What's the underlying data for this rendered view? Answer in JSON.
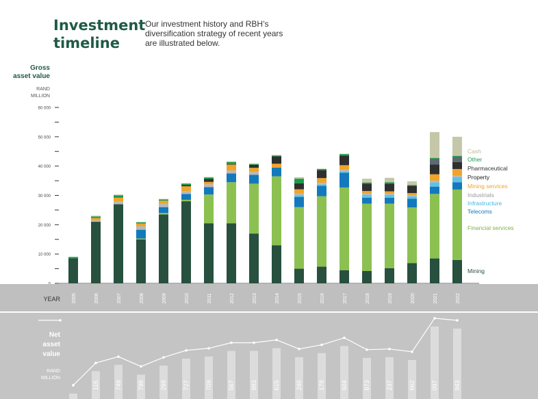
{
  "header": {
    "title_lines": [
      "Investment",
      "timeline"
    ],
    "intro_lines": [
      "Our investment history and RBH’s",
      "diversification strategy of recent years",
      "are illustrated below."
    ]
  },
  "gross_axis": {
    "title_lines": [
      "Gross",
      "asset value"
    ],
    "unit_lines": [
      "RAND",
      "MILLION"
    ]
  },
  "year_label": "YEAR",
  "net_axis": {
    "title_lines": [
      "Net",
      "asset",
      "value"
    ],
    "unit_lines": [
      "RAND",
      "MILLION"
    ]
  },
  "colors": {
    "mining": "#27503f",
    "financial_services": "#8cc152",
    "telecoms": "#1479bc",
    "infrastructure": "#5ec2e6",
    "industrials": "#b8b8b8",
    "mining_services": "#f0a42a",
    "property": "#2f2f2f",
    "pharmaceutical": "#5d6a70",
    "other": "#1b9b4a",
    "cash": "#c5c8a8",
    "band": "#bfbfbf",
    "net_band": "#c4c4c4"
  },
  "chart_data": [
    {
      "type": "bar",
      "stacked": true,
      "ylim": [
        0,
        60000
      ],
      "yticks": [
        "60 000",
        "50 000",
        "40 000",
        "30 000",
        "20 000",
        "10 000",
        "0"
      ],
      "ytick_values": [
        60000,
        50000,
        40000,
        30000,
        20000,
        10000,
        0
      ],
      "categories": [
        "2005",
        "2006",
        "2007",
        "2008",
        "2009",
        "2010",
        "2011",
        "2012",
        "2013",
        "2014",
        "2015",
        "2016",
        "2017",
        "2018",
        "2019",
        "2020",
        "2021",
        "2022"
      ],
      "legend_position": "right",
      "series": [
        {
          "name": "Mining",
          "key": "mining",
          "values": [
            8500,
            21000,
            27000,
            15000,
            23500,
            28000,
            20500,
            20500,
            17000,
            13000,
            5000,
            5700,
            4500,
            4200,
            5200,
            6900,
            8500,
            8000
          ]
        },
        {
          "name": "Financial services",
          "key": "financial_services",
          "values": [
            0,
            0,
            0,
            300,
            500,
            500,
            9800,
            14000,
            17000,
            23500,
            21000,
            24000,
            28200,
            23000,
            22000,
            19000,
            22000,
            24000
          ]
        },
        {
          "name": "Telecoms",
          "key": "telecoms",
          "values": [
            0,
            0,
            0,
            3000,
            2000,
            2000,
            2500,
            3000,
            3000,
            3000,
            3500,
            3600,
            5000,
            2000,
            2000,
            3000,
            2500,
            2500
          ]
        },
        {
          "name": "Infrastructure",
          "key": "infrastructure",
          "values": [
            0,
            0,
            0,
            0,
            0,
            0,
            0,
            0,
            0,
            0,
            500,
            500,
            500,
            1000,
            1000,
            800,
            1500,
            1700
          ]
        },
        {
          "name": "Industrials",
          "key": "industrials",
          "values": [
            0,
            500,
            1000,
            1200,
            1200,
            1000,
            1000,
            1000,
            1000,
            0,
            600,
            500,
            500,
            500,
            500,
            400,
            500,
            500
          ]
        },
        {
          "name": "Mining services",
          "key": "mining_services",
          "values": [
            0,
            800,
            1200,
            900,
            1000,
            1600,
            800,
            2000,
            1400,
            1300,
            1500,
            1600,
            1600,
            800,
            700,
            700,
            2200,
            2300
          ]
        },
        {
          "name": "Property",
          "key": "property",
          "values": [
            0,
            0,
            0,
            0,
            0,
            400,
            1000,
            200,
            1000,
            2500,
            2000,
            2700,
            3300,
            2500,
            2600,
            2500,
            3300,
            2400
          ]
        },
        {
          "name": "Pharmaceutical",
          "key": "pharmaceutical",
          "values": [
            0,
            0,
            0,
            0,
            0,
            0,
            0,
            0,
            0,
            0,
            0,
            0,
            0,
            0,
            0,
            0,
            2000,
            1800
          ]
        },
        {
          "name": "Other",
          "key": "other",
          "values": [
            500,
            500,
            800,
            400,
            400,
            500,
            500,
            700,
            300,
            300,
            1600,
            400,
            500,
            400,
            500,
            200,
            300,
            300
          ]
        },
        {
          "name": "Cash",
          "key": "cash",
          "values": [
            0,
            300,
            300,
            200,
            200,
            200,
            200,
            200,
            200,
            200,
            500,
            100,
            100,
            1300,
            1500,
            1300,
            8800,
            6500
          ]
        }
      ]
    },
    {
      "type": "line",
      "categories": [
        "2005",
        "2006",
        "2007",
        "2008",
        "2009",
        "2010",
        "2011",
        "2012",
        "2013",
        "2014",
        "2015",
        "2016",
        "2017",
        "2018",
        "2019",
        "2020",
        "2021",
        "2022"
      ],
      "value_labels": [
        "",
        "115",
        "749",
        "798",
        "299",
        "727",
        "709",
        "567",
        "983",
        "615",
        "240",
        "178",
        "604",
        "873",
        "237",
        "662",
        "097",
        "943"
      ],
      "relative_values": [
        0.02,
        0.34,
        0.43,
        0.29,
        0.42,
        0.52,
        0.55,
        0.63,
        0.63,
        0.67,
        0.54,
        0.6,
        0.7,
        0.53,
        0.54,
        0.5,
        0.98,
        0.95
      ]
    }
  ]
}
